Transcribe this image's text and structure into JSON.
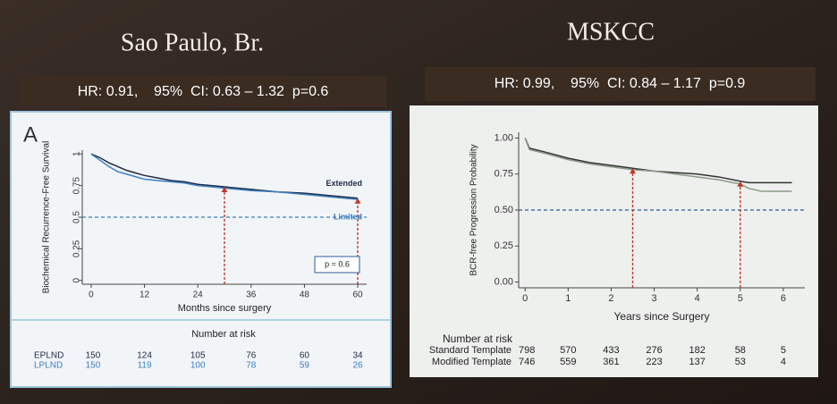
{
  "chart_data": [
    {
      "type": "line",
      "title": "Sao Paulo, Br.",
      "subtitle": "HR: 0.91,    95%  CI: 0.63 – 1.32  p=0.6",
      "panel_label": "A",
      "xlabel": "Months since surgery",
      "ylabel": "Biochemical Recurrence-Free Survival",
      "xlim": [
        -2,
        62
      ],
      "ylim": [
        -0.03,
        1.03
      ],
      "xticks": [
        0,
        12,
        24,
        36,
        48,
        60
      ],
      "yticks": [
        0,
        0.25,
        0.5,
        0.75,
        1
      ],
      "x": [
        0,
        2,
        4,
        6,
        8,
        10,
        12,
        15,
        18,
        21,
        24,
        27,
        30,
        36,
        42,
        48,
        54,
        60
      ],
      "series": [
        {
          "name": "Extended",
          "color": "#1f2a44",
          "values": [
            1,
            0.97,
            0.93,
            0.9,
            0.87,
            0.85,
            0.83,
            0.81,
            0.79,
            0.78,
            0.76,
            0.75,
            0.74,
            0.72,
            0.7,
            0.69,
            0.67,
            0.65
          ]
        },
        {
          "name": "Limited",
          "color": "#3b7fc0",
          "values": [
            1,
            0.95,
            0.9,
            0.86,
            0.84,
            0.82,
            0.8,
            0.79,
            0.78,
            0.77,
            0.75,
            0.74,
            0.73,
            0.71,
            0.7,
            0.68,
            0.66,
            0.64
          ]
        }
      ],
      "hline": {
        "y": 0.5,
        "color": "#3b7fc0"
      },
      "arrows_x": [
        30,
        60
      ],
      "arrow_color": "#c0392b",
      "annotation": "p = 0.6",
      "at_risk": {
        "title": "Number at risk",
        "rows": [
          {
            "name": "EPLND",
            "color": "#1f2a44",
            "values": [
              150,
              124,
              105,
              76,
              60,
              34
            ]
          },
          {
            "name": "LPLND",
            "color": "#3b7fc0",
            "values": [
              150,
              119,
              100,
              78,
              59,
              26
            ]
          }
        ]
      }
    },
    {
      "type": "line",
      "title": "MSKCC",
      "subtitle": "HR: 0.99,    95%  CI: 0.84 – 1.17  p=0.9",
      "xlabel": "Years since Surgery",
      "ylabel": "BCR-free Progression Probability",
      "xlim": [
        -0.15,
        6.5
      ],
      "ylim": [
        -0.04,
        1.04
      ],
      "xticks": [
        0,
        1,
        2,
        3,
        4,
        5,
        6
      ],
      "yticks": [
        {
          "value": 0,
          "label": "0.00"
        },
        {
          "value": 0.25,
          "label": "0.25"
        },
        {
          "value": 0.5,
          "label": "0.50"
        },
        {
          "value": 0.75,
          "label": "0.75"
        },
        {
          "value": 1,
          "label": "1.00"
        }
      ],
      "x": [
        0,
        0.1,
        0.5,
        1,
        1.5,
        2,
        2.5,
        3,
        3.5,
        4,
        4.5,
        5,
        5.2,
        5.5,
        6,
        6.2
      ],
      "series": [
        {
          "color": "#333333",
          "values": [
            1,
            0.93,
            0.9,
            0.86,
            0.83,
            0.81,
            0.79,
            0.77,
            0.76,
            0.75,
            0.73,
            0.7,
            0.69,
            0.69,
            0.69,
            0.69
          ]
        },
        {
          "color": "#8a9a86",
          "values": [
            1,
            0.92,
            0.89,
            0.85,
            0.82,
            0.8,
            0.78,
            0.77,
            0.75,
            0.73,
            0.71,
            0.68,
            0.65,
            0.63,
            0.63,
            0.63
          ]
        }
      ],
      "hline": {
        "y": 0.5,
        "color": "#2f5a9e"
      },
      "arrows_x": [
        2.5,
        5
      ],
      "arrow_color": "#c0392b",
      "at_risk": {
        "title": "Number at risk",
        "rows": [
          {
            "name": "Standard Template",
            "color": "#222222",
            "values": [
              798,
              570,
              433,
              276,
              182,
              58,
              5
            ]
          },
          {
            "name": "Modified Template",
            "color": "#222222",
            "values": [
              746,
              559,
              361,
              223,
              137,
              53,
              4
            ]
          }
        ]
      }
    }
  ]
}
